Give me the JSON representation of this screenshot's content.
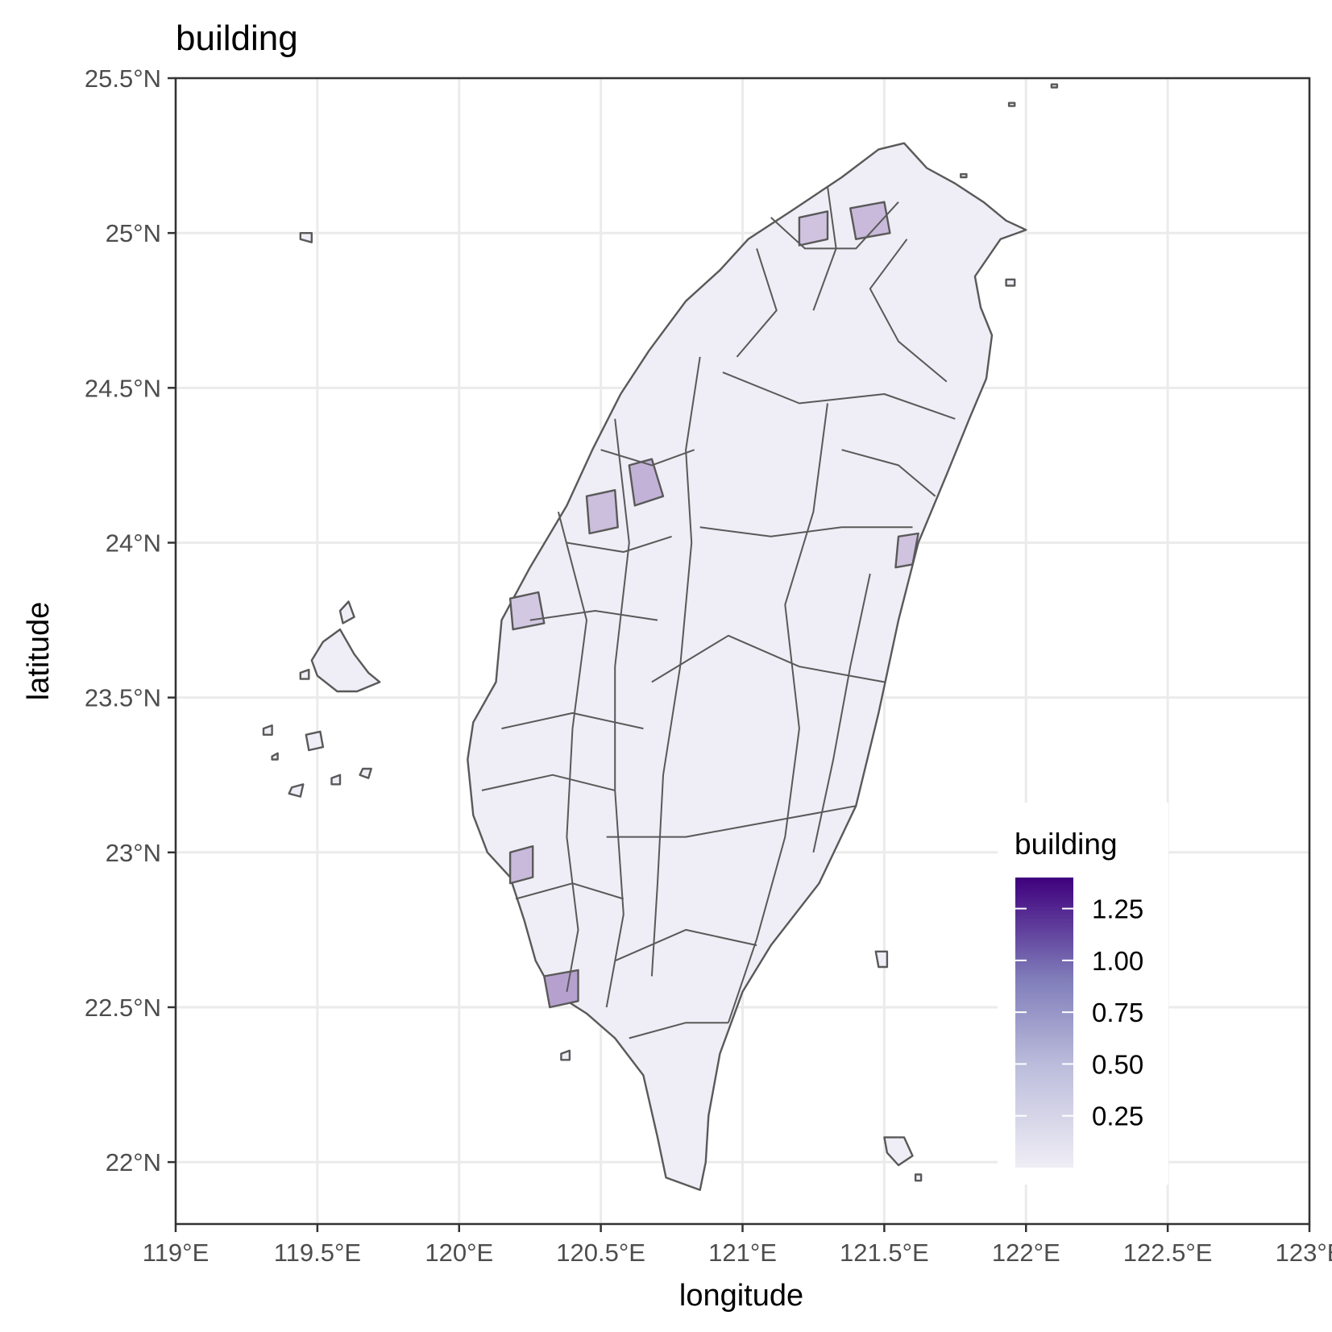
{
  "title": "building",
  "x_axis": {
    "label": "longitude",
    "ticks": [
      "119°E",
      "119.5°E",
      "120°E",
      "120.5°E",
      "121°E",
      "121.5°E",
      "122°E",
      "122.5°E",
      "123°E"
    ],
    "values": [
      119,
      119.5,
      120,
      120.5,
      121,
      121.5,
      122,
      122.5,
      123
    ],
    "range": [
      119,
      123
    ]
  },
  "y_axis": {
    "label": "latitude",
    "ticks": [
      "22°N",
      "22.5°N",
      "23°N",
      "23.5°N",
      "24°N",
      "24.5°N",
      "25°N",
      "25.5°N"
    ],
    "values": [
      22,
      22.5,
      23,
      23.5,
      24,
      24.5,
      25,
      25.5
    ],
    "range": [
      21.8,
      25.5
    ]
  },
  "legend": {
    "title": "building",
    "position": "bottom-right",
    "scale_min": 0,
    "scale_max": 1.4,
    "color_low": "#efedf5",
    "color_high": "#3f007d",
    "breaks": [
      {
        "label": "1.25",
        "value": 1.25
      },
      {
        "label": "1.00",
        "value": 1.0
      },
      {
        "label": "0.75",
        "value": 0.75
      },
      {
        "label": "0.50",
        "value": 0.5
      },
      {
        "label": "0.25",
        "value": 0.25
      }
    ]
  },
  "colors": {
    "land_fill": "#efedf5",
    "boundary": "#595959",
    "grid": "#ebebeb",
    "panel_border": "#333333"
  },
  "chart_data": {
    "type": "choropleth",
    "title": "building",
    "xlabel": "longitude",
    "ylabel": "latitude",
    "xlim": [
      119,
      123
    ],
    "ylim": [
      21.8,
      25.5
    ],
    "grid": true,
    "legend_position": "bottom-right",
    "fill_variable": "building",
    "fill_range": [
      0,
      1.4
    ],
    "fill_scale": "sequential purples",
    "regions_geo": {
      "main_island": [
        [
          121.57,
          25.29
        ],
        [
          121.65,
          25.21
        ],
        [
          121.75,
          25.16
        ],
        [
          121.85,
          25.1
        ],
        [
          121.93,
          25.04
        ],
        [
          122.0,
          25.01
        ],
        [
          121.91,
          24.98
        ],
        [
          121.82,
          24.86
        ],
        [
          121.84,
          24.76
        ],
        [
          121.88,
          24.67
        ],
        [
          121.86,
          24.53
        ],
        [
          121.8,
          24.4
        ],
        [
          121.72,
          24.22
        ],
        [
          121.62,
          24.0
        ],
        [
          121.55,
          23.75
        ],
        [
          121.48,
          23.45
        ],
        [
          121.4,
          23.15
        ],
        [
          121.27,
          22.9
        ],
        [
          121.1,
          22.7
        ],
        [
          121.0,
          22.55
        ],
        [
          120.92,
          22.35
        ],
        [
          120.88,
          22.15
        ],
        [
          120.87,
          22.0
        ],
        [
          120.85,
          21.91
        ],
        [
          120.73,
          21.95
        ],
        [
          120.7,
          22.08
        ],
        [
          120.65,
          22.28
        ],
        [
          120.55,
          22.4
        ],
        [
          120.45,
          22.48
        ],
        [
          120.33,
          22.55
        ],
        [
          120.27,
          22.65
        ],
        [
          120.23,
          22.78
        ],
        [
          120.18,
          22.92
        ],
        [
          120.1,
          23.0
        ],
        [
          120.05,
          23.12
        ],
        [
          120.03,
          23.3
        ],
        [
          120.05,
          23.42
        ],
        [
          120.13,
          23.55
        ],
        [
          120.15,
          23.75
        ],
        [
          120.25,
          23.92
        ],
        [
          120.38,
          24.12
        ],
        [
          120.47,
          24.3
        ],
        [
          120.57,
          24.48
        ],
        [
          120.67,
          24.62
        ],
        [
          120.8,
          24.78
        ],
        [
          120.92,
          24.88
        ],
        [
          121.02,
          24.98
        ],
        [
          121.17,
          25.07
        ],
        [
          121.35,
          25.18
        ],
        [
          121.48,
          25.27
        ]
      ]
    },
    "islands_geo": [
      {
        "name": "penghu-main",
        "points": [
          [
            119.52,
            23.68
          ],
          [
            119.58,
            23.72
          ],
          [
            119.63,
            23.64
          ],
          [
            119.68,
            23.58
          ],
          [
            119.72,
            23.55
          ],
          [
            119.64,
            23.52
          ],
          [
            119.57,
            23.52
          ],
          [
            119.5,
            23.57
          ],
          [
            119.48,
            23.62
          ]
        ]
      },
      {
        "name": "penghu-north",
        "points": [
          [
            119.58,
            23.78
          ],
          [
            119.61,
            23.81
          ],
          [
            119.63,
            23.76
          ],
          [
            119.59,
            23.74
          ]
        ]
      },
      {
        "name": "penghu-south-1",
        "points": [
          [
            119.46,
            23.38
          ],
          [
            119.51,
            23.39
          ],
          [
            119.52,
            23.34
          ],
          [
            119.47,
            23.33
          ]
        ]
      },
      {
        "name": "penghu-south-2",
        "points": [
          [
            119.41,
            23.21
          ],
          [
            119.45,
            23.22
          ],
          [
            119.44,
            23.18
          ],
          [
            119.4,
            23.19
          ]
        ]
      },
      {
        "name": "penghu-south-3",
        "points": [
          [
            119.66,
            23.27
          ],
          [
            119.69,
            23.27
          ],
          [
            119.68,
            23.24
          ],
          [
            119.65,
            23.25
          ]
        ]
      },
      {
        "name": "penghu-west",
        "points": [
          [
            119.31,
            23.4
          ],
          [
            119.34,
            23.41
          ],
          [
            119.34,
            23.38
          ],
          [
            119.31,
            23.38
          ]
        ]
      },
      {
        "name": "penghu-mid",
        "points": [
          [
            119.55,
            23.24
          ],
          [
            119.58,
            23.25
          ],
          [
            119.58,
            23.22
          ],
          [
            119.55,
            23.22
          ]
        ]
      },
      {
        "name": "penghu-small-a",
        "points": [
          [
            119.44,
            23.58
          ],
          [
            119.47,
            23.59
          ],
          [
            119.47,
            23.56
          ],
          [
            119.44,
            23.56
          ]
        ]
      },
      {
        "name": "penghu-small-b",
        "points": [
          [
            119.34,
            23.31
          ],
          [
            119.36,
            23.32
          ],
          [
            119.36,
            23.3
          ],
          [
            119.34,
            23.3
          ]
        ]
      },
      {
        "name": "liuqiu",
        "points": [
          [
            120.36,
            22.35
          ],
          [
            120.39,
            22.36
          ],
          [
            120.39,
            22.33
          ],
          [
            120.36,
            22.33
          ]
        ]
      },
      {
        "name": "green-island",
        "points": [
          [
            121.47,
            22.68
          ],
          [
            121.51,
            22.68
          ],
          [
            121.51,
            22.63
          ],
          [
            121.48,
            22.63
          ]
        ]
      },
      {
        "name": "orchid-island",
        "points": [
          [
            121.5,
            22.08
          ],
          [
            121.57,
            22.08
          ],
          [
            121.6,
            22.02
          ],
          [
            121.55,
            21.99
          ],
          [
            121.51,
            22.03
          ]
        ]
      },
      {
        "name": "little-orchid",
        "points": [
          [
            121.61,
            21.96
          ],
          [
            121.63,
            21.96
          ],
          [
            121.63,
            21.94
          ],
          [
            121.61,
            21.94
          ]
        ]
      },
      {
        "name": "guishan",
        "points": [
          [
            121.93,
            24.85
          ],
          [
            121.96,
            24.85
          ],
          [
            121.96,
            24.83
          ],
          [
            121.93,
            24.83
          ]
        ]
      },
      {
        "name": "pengjia-1",
        "points": [
          [
            122.09,
            25.48
          ],
          [
            122.11,
            25.48
          ],
          [
            122.11,
            25.47
          ],
          [
            122.09,
            25.47
          ]
        ]
      },
      {
        "name": "pengjia-2",
        "points": [
          [
            121.94,
            25.42
          ],
          [
            121.96,
            25.42
          ],
          [
            121.96,
            25.41
          ],
          [
            121.94,
            25.41
          ]
        ]
      },
      {
        "name": "pengjia-3",
        "points": [
          [
            121.77,
            25.19
          ],
          [
            121.79,
            25.19
          ],
          [
            121.79,
            25.18
          ],
          [
            121.77,
            25.18
          ]
        ]
      },
      {
        "name": "wuqiu",
        "points": [
          [
            119.44,
            25.0
          ],
          [
            119.48,
            25.0
          ],
          [
            119.48,
            24.97
          ],
          [
            119.44,
            24.98
          ]
        ]
      }
    ],
    "boundaries_geo": [
      [
        [
          120.93,
          24.55
        ],
        [
          121.2,
          24.45
        ],
        [
          121.5,
          24.48
        ],
        [
          121.75,
          24.4
        ]
      ],
      [
        [
          120.85,
          24.05
        ],
        [
          121.1,
          24.02
        ],
        [
          121.35,
          24.05
        ],
        [
          121.6,
          24.05
        ]
      ],
      [
        [
          120.68,
          23.55
        ],
        [
          120.95,
          23.7
        ],
        [
          121.2,
          23.6
        ],
        [
          121.5,
          23.55
        ]
      ],
      [
        [
          120.52,
          23.05
        ],
        [
          120.8,
          23.05
        ],
        [
          121.1,
          23.1
        ],
        [
          121.4,
          23.15
        ]
      ],
      [
        [
          120.55,
          22.65
        ],
        [
          120.8,
          22.75
        ],
        [
          121.05,
          22.7
        ]
      ],
      [
        [
          120.6,
          22.4
        ],
        [
          120.8,
          22.45
        ],
        [
          120.95,
          22.45
        ]
      ],
      [
        [
          121.3,
          24.45
        ],
        [
          121.25,
          24.1
        ],
        [
          121.15,
          23.8
        ],
        [
          121.2,
          23.4
        ],
        [
          121.15,
          23.05
        ],
        [
          121.05,
          22.72
        ],
        [
          120.95,
          22.45
        ]
      ],
      [
        [
          120.85,
          24.6
        ],
        [
          120.8,
          24.3
        ],
        [
          120.82,
          24.0
        ],
        [
          120.78,
          23.6
        ],
        [
          120.72,
          23.25
        ],
        [
          120.7,
          22.9
        ],
        [
          120.68,
          22.6
        ]
      ],
      [
        [
          121.58,
          24.98
        ],
        [
          121.45,
          24.82
        ],
        [
          121.55,
          24.65
        ],
        [
          121.72,
          24.52
        ]
      ],
      [
        [
          121.05,
          24.95
        ],
        [
          121.12,
          24.75
        ],
        [
          120.98,
          24.6
        ]
      ],
      [
        [
          121.3,
          25.15
        ],
        [
          121.33,
          24.95
        ],
        [
          121.25,
          24.75
        ]
      ],
      [
        [
          120.5,
          24.3
        ],
        [
          120.68,
          24.25
        ],
        [
          120.83,
          24.3
        ]
      ],
      [
        [
          120.38,
          24.0
        ],
        [
          120.58,
          23.97
        ],
        [
          120.75,
          24.02
        ]
      ],
      [
        [
          120.25,
          23.75
        ],
        [
          120.48,
          23.78
        ],
        [
          120.7,
          23.75
        ]
      ],
      [
        [
          120.15,
          23.4
        ],
        [
          120.4,
          23.45
        ],
        [
          120.65,
          23.4
        ]
      ],
      [
        [
          120.08,
          23.2
        ],
        [
          120.33,
          23.25
        ],
        [
          120.55,
          23.2
        ]
      ],
      [
        [
          120.2,
          22.85
        ],
        [
          120.4,
          22.9
        ],
        [
          120.58,
          22.85
        ]
      ],
      [
        [
          120.35,
          24.1
        ],
        [
          120.45,
          23.75
        ],
        [
          120.4,
          23.4
        ],
        [
          120.38,
          23.05
        ],
        [
          120.42,
          22.75
        ],
        [
          120.38,
          22.55
        ]
      ],
      [
        [
          120.55,
          24.4
        ],
        [
          120.6,
          24.0
        ],
        [
          120.55,
          23.6
        ],
        [
          120.55,
          23.2
        ],
        [
          120.58,
          22.8
        ],
        [
          120.52,
          22.5
        ]
      ],
      [
        [
          121.45,
          23.9
        ],
        [
          121.38,
          23.6
        ],
        [
          121.32,
          23.3
        ],
        [
          121.25,
          23.0
        ]
      ],
      [
        [
          121.1,
          25.05
        ],
        [
          121.22,
          24.95
        ],
        [
          121.4,
          24.95
        ],
        [
          121.55,
          25.1
        ]
      ],
      [
        [
          121.35,
          24.3
        ],
        [
          121.55,
          24.25
        ],
        [
          121.68,
          24.15
        ]
      ]
    ],
    "highlighted_regions_geo": [
      {
        "value": 0.35,
        "points": [
          [
            120.6,
            24.25
          ],
          [
            120.68,
            24.27
          ],
          [
            120.72,
            24.15
          ],
          [
            120.62,
            24.12
          ]
        ]
      },
      {
        "value": 0.28,
        "points": [
          [
            120.45,
            24.15
          ],
          [
            120.55,
            24.17
          ],
          [
            120.56,
            24.05
          ],
          [
            120.46,
            24.03
          ]
        ]
      },
      {
        "value": 0.22,
        "points": [
          [
            120.18,
            23.82
          ],
          [
            120.28,
            23.84
          ],
          [
            120.3,
            23.74
          ],
          [
            120.19,
            23.72
          ]
        ]
      },
      {
        "value": 0.3,
        "points": [
          [
            120.18,
            23.0
          ],
          [
            120.26,
            23.02
          ],
          [
            120.26,
            22.92
          ],
          [
            120.18,
            22.9
          ]
        ]
      },
      {
        "value": 0.45,
        "points": [
          [
            120.3,
            22.6
          ],
          [
            120.42,
            22.62
          ],
          [
            120.42,
            22.52
          ],
          [
            120.32,
            22.5
          ]
        ]
      },
      {
        "value": 0.3,
        "points": [
          [
            121.38,
            25.08
          ],
          [
            121.5,
            25.1
          ],
          [
            121.52,
            25.0
          ],
          [
            121.4,
            24.98
          ]
        ]
      },
      {
        "value": 0.25,
        "points": [
          [
            121.2,
            25.05
          ],
          [
            121.3,
            25.07
          ],
          [
            121.3,
            24.98
          ],
          [
            121.2,
            24.96
          ]
        ]
      },
      {
        "value": 0.25,
        "points": [
          [
            121.55,
            24.02
          ],
          [
            121.62,
            24.03
          ],
          [
            121.6,
            23.93
          ],
          [
            121.54,
            23.92
          ]
        ]
      }
    ]
  }
}
